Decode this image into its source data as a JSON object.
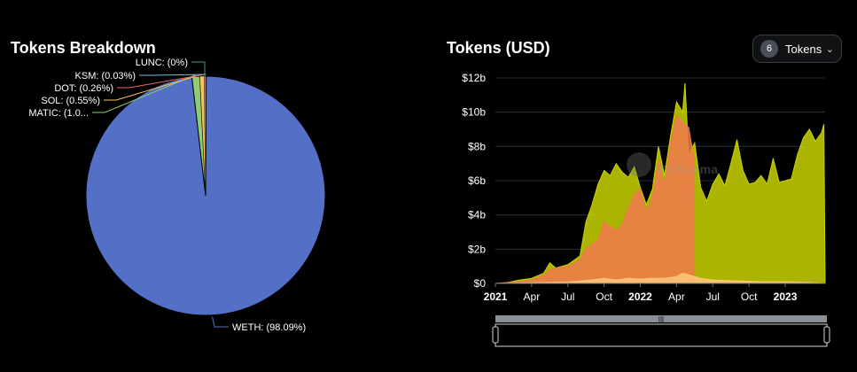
{
  "pie_panel": {
    "title": "Tokens Breakdown"
  },
  "area_panel": {
    "title": "Tokens (USD)",
    "watermark": "DefiLlama"
  },
  "tokens_button": {
    "count": "6",
    "label": "Tokens",
    "chevron": "chevron-down-icon"
  },
  "chart_data": [
    {
      "type": "pie",
      "title": "Tokens Breakdown",
      "slices": [
        {
          "label": "WETH: (98.09%)",
          "value": 98.09,
          "color": "#5470C6"
        },
        {
          "label": "MATIC: (1.0...",
          "value": 1.07,
          "color": "#91CC75"
        },
        {
          "label": "SOL: (0.55%)",
          "value": 0.55,
          "color": "#FAC858"
        },
        {
          "label": "DOT: (0.26%)",
          "value": 0.26,
          "color": "#EE6666"
        },
        {
          "label": "KSM: (0.03%)",
          "value": 0.03,
          "color": "#73C0DE"
        },
        {
          "label": "LUNC: (0%)",
          "value": 0.0,
          "color": "#3BA272"
        }
      ]
    },
    {
      "type": "area",
      "title": "Tokens (USD)",
      "ylim": [
        0,
        12
      ],
      "y_ticks": [
        "$0",
        "$2b",
        "$4b",
        "$6b",
        "$8b",
        "$10b",
        "$12b"
      ],
      "x_ticks": [
        {
          "label": "2021",
          "t": 0,
          "bold": true
        },
        {
          "label": "Apr",
          "t": 3,
          "bold": false
        },
        {
          "label": "Jul",
          "t": 6,
          "bold": false
        },
        {
          "label": "Oct",
          "t": 9,
          "bold": false
        },
        {
          "label": "2022",
          "t": 12,
          "bold": true
        },
        {
          "label": "Apr",
          "t": 15,
          "bold": false
        },
        {
          "label": "Jul",
          "t": 18,
          "bold": false
        },
        {
          "label": "Oct",
          "t": 21,
          "bold": false
        },
        {
          "label": "2023",
          "t": 24,
          "bold": true
        }
      ],
      "series": [
        {
          "color": "#C9D400",
          "points": [
            [
              0,
              0
            ],
            [
              1,
              0.05
            ],
            [
              2,
              0.2
            ],
            [
              3,
              0.3
            ],
            [
              4,
              0.6
            ],
            [
              4.5,
              1.2
            ],
            [
              5,
              0.9
            ],
            [
              6,
              1.1
            ],
            [
              7,
              1.6
            ],
            [
              7.5,
              3.6
            ],
            [
              8,
              4.6
            ],
            [
              8.5,
              5.8
            ],
            [
              9,
              6.6
            ],
            [
              9.5,
              6.3
            ],
            [
              10,
              7.0
            ],
            [
              10.5,
              6.5
            ],
            [
              11,
              6.2
            ],
            [
              11.5,
              6.8
            ],
            [
              12,
              5.6
            ],
            [
              12.5,
              4.6
            ],
            [
              13,
              5.5
            ],
            [
              13.5,
              8.0
            ],
            [
              14,
              6.3
            ],
            [
              14.5,
              8.6
            ],
            [
              15,
              10.6
            ],
            [
              15.5,
              10.0
            ],
            [
              15.7,
              11.7
            ],
            [
              16,
              7.5
            ],
            [
              16.5,
              8.2
            ],
            [
              17,
              5.6
            ],
            [
              17.5,
              4.8
            ],
            [
              18,
              5.8
            ],
            [
              18.5,
              6.4
            ],
            [
              19,
              5.7
            ],
            [
              19.5,
              7.0
            ],
            [
              20,
              8.4
            ],
            [
              20.5,
              6.6
            ],
            [
              21,
              5.8
            ],
            [
              21.5,
              5.9
            ],
            [
              22,
              6.3
            ],
            [
              22.5,
              5.8
            ],
            [
              23,
              7.3
            ],
            [
              23.5,
              5.9
            ],
            [
              24,
              6.0
            ],
            [
              24.5,
              6.1
            ],
            [
              25,
              7.5
            ],
            [
              25.5,
              8.5
            ],
            [
              26,
              9.0
            ],
            [
              26.5,
              8.3
            ],
            [
              27,
              8.8
            ],
            [
              27.2,
              9.3
            ],
            [
              27.3,
              0
            ]
          ]
        },
        {
          "color": "#F07A4E",
          "points": [
            [
              0,
              0
            ],
            [
              1,
              0.05
            ],
            [
              2,
              0.1
            ],
            [
              3,
              0.2
            ],
            [
              4,
              0.5
            ],
            [
              4.5,
              0.8
            ],
            [
              5,
              0.9
            ],
            [
              6,
              1.0
            ],
            [
              7,
              1.4
            ],
            [
              7.5,
              2.0
            ],
            [
              8,
              2.3
            ],
            [
              8.5,
              2.5
            ],
            [
              9,
              3.6
            ],
            [
              9.5,
              3.3
            ],
            [
              10,
              3.1
            ],
            [
              10.5,
              3.4
            ],
            [
              11,
              4.4
            ],
            [
              11.5,
              5.2
            ],
            [
              12,
              5.5
            ],
            [
              12.5,
              4.2
            ],
            [
              13,
              5.0
            ],
            [
              13.5,
              7.2
            ],
            [
              14,
              5.7
            ],
            [
              14.5,
              8.2
            ],
            [
              15,
              9.8
            ],
            [
              15.5,
              9.4
            ],
            [
              16,
              9.1
            ],
            [
              16.4,
              7.5
            ],
            [
              16.5,
              0
            ]
          ]
        },
        {
          "color": "#FFC87A",
          "points": [
            [
              0,
              0
            ],
            [
              2,
              0.02
            ],
            [
              4,
              0.05
            ],
            [
              6,
              0.08
            ],
            [
              8,
              0.2
            ],
            [
              9,
              0.3
            ],
            [
              10,
              0.2
            ],
            [
              11,
              0.3
            ],
            [
              12,
              0.25
            ],
            [
              13,
              0.3
            ],
            [
              14,
              0.3
            ],
            [
              15,
              0.4
            ],
            [
              15.5,
              0.6
            ],
            [
              16,
              0.5
            ],
            [
              17,
              0.3
            ],
            [
              18,
              0.2
            ],
            [
              20,
              0.15
            ],
            [
              22,
              0.1
            ],
            [
              24,
              0.1
            ],
            [
              26,
              0.05
            ],
            [
              27.3,
              0
            ]
          ]
        }
      ]
    }
  ]
}
